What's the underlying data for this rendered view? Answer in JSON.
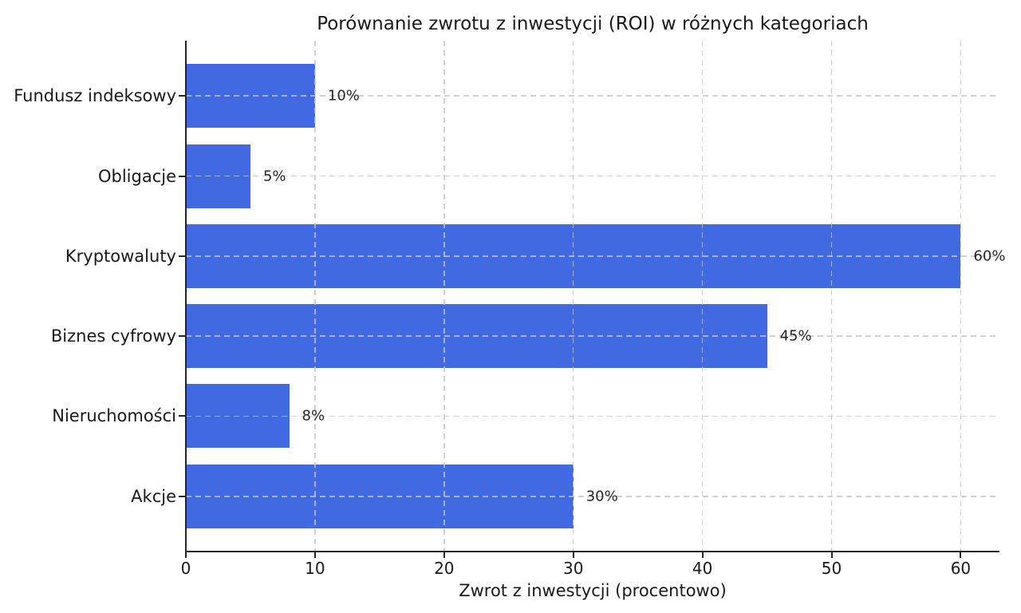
{
  "chart_data": {
    "type": "bar",
    "orientation": "horizontal",
    "title": "Porównanie zwrotu z inwestycji (ROI) w różnych kategoriach",
    "xlabel": "Zwrot z inwestycji (procentowo)",
    "categories": [
      "Fundusz indeksowy",
      "Obligacje",
      "Kryptowaluty",
      "Biznes cyfrowy",
      "Nieruchomości",
      "Akcje"
    ],
    "values": [
      10,
      5,
      60,
      45,
      8,
      30
    ],
    "bar_labels": [
      "10%",
      "5%",
      "60%",
      "45%",
      "8%",
      "30%"
    ],
    "xticks": [
      {
        "value": 0,
        "label": "0"
      },
      {
        "value": 10,
        "label": "10"
      },
      {
        "value": 20,
        "label": "20"
      },
      {
        "value": 30,
        "label": "30"
      },
      {
        "value": 40,
        "label": "40"
      },
      {
        "value": 50,
        "label": "50"
      },
      {
        "value": 60,
        "label": "60"
      }
    ],
    "xlim": [
      0,
      63
    ],
    "grid": {
      "on": true,
      "style": "dashed",
      "axis": "both"
    },
    "legend": {
      "on": false
    },
    "colors": {
      "bar": "#4169E1",
      "grid": "#c6c6c6",
      "axis": "#262626",
      "text": "#1a1a1a"
    }
  }
}
